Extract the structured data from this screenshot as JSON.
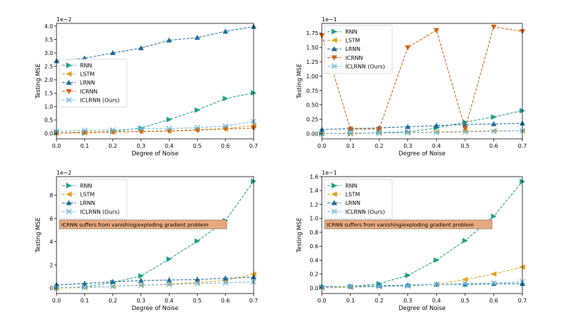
{
  "chart_data": [
    {
      "type": "line",
      "xlabel": "Degree of Noise",
      "ylabel": "Testing MSE",
      "scale_label": "1e−2",
      "x": [
        0.0,
        0.1,
        0.2,
        0.3,
        0.4,
        0.5,
        0.6,
        0.7
      ],
      "xticks": [
        "0.0",
        "0.1",
        "0.2",
        "0.3",
        "0.4",
        "0.5",
        "0.6",
        "0.7"
      ],
      "yticks": [
        0.0,
        0.5,
        1.0,
        1.5,
        2.0,
        2.5,
        3.0,
        3.5,
        4.0
      ],
      "ytick_labels": [
        "0.0",
        "0.5",
        "1.0",
        "1.5",
        "2.0",
        "2.5",
        "3.0",
        "3.5",
        "4.0"
      ],
      "xlim": [
        0.0,
        0.7
      ],
      "ylim": [
        -0.2,
        4.1
      ],
      "legend_position": "center-left",
      "series": [
        {
          "name": "RNN",
          "values": [
            0.02,
            0.02,
            0.08,
            0.2,
            0.52,
            0.87,
            1.3,
            1.51
          ]
        },
        {
          "name": "LSTM",
          "values": [
            0.02,
            0.02,
            0.05,
            0.08,
            0.1,
            0.14,
            0.18,
            0.3
          ]
        },
        {
          "name": "LRNN",
          "values": [
            2.7,
            2.8,
            3.0,
            3.18,
            3.47,
            3.57,
            3.8,
            3.98
          ]
        },
        {
          "name": "ICRNN",
          "values": [
            0.01,
            0.05,
            0.06,
            0.07,
            0.09,
            0.12,
            0.17,
            0.2
          ]
        },
        {
          "name": "ICLRNN (Ours)",
          "values": [
            0.08,
            0.12,
            0.13,
            0.17,
            0.18,
            0.22,
            0.27,
            0.45
          ]
        }
      ]
    },
    {
      "type": "line",
      "xlabel": "Degree of Noise",
      "ylabel": "Testing MSE",
      "scale_label": "1e−1",
      "x": [
        0.0,
        0.1,
        0.2,
        0.3,
        0.4,
        0.5,
        0.6,
        0.7
      ],
      "xticks": [
        "0.0",
        "0.1",
        "0.2",
        "0.3",
        "0.4",
        "0.5",
        "0.6",
        "0.7"
      ],
      "yticks": [
        0.0,
        0.25,
        0.5,
        0.75,
        1.0,
        1.25,
        1.5,
        1.75
      ],
      "ytick_labels": [
        "0.00",
        "0.25",
        "0.50",
        "0.75",
        "1.00",
        "1.25",
        "1.50",
        "1.75"
      ],
      "xlim": [
        0.0,
        0.7
      ],
      "ylim": [
        -0.09,
        1.92
      ],
      "legend_position": "upper-left",
      "series": [
        {
          "name": "RNN",
          "values": [
            0.0,
            0.0,
            0.02,
            0.03,
            0.1,
            0.2,
            0.29,
            0.4
          ]
        },
        {
          "name": "LSTM",
          "values": [
            0.0,
            0.0,
            0.01,
            0.02,
            0.03,
            0.04,
            0.05,
            0.05
          ]
        },
        {
          "name": "LRNN",
          "values": [
            0.07,
            0.09,
            0.1,
            0.12,
            0.14,
            0.16,
            0.17,
            0.18
          ]
        },
        {
          "name": "ICRNN",
          "values": [
            1.71,
            0.08,
            0.08,
            1.5,
            1.8,
            0.09,
            1.86,
            1.78
          ]
        },
        {
          "name": "ICLRNN (Ours)",
          "values": [
            0.0,
            0.01,
            0.01,
            0.02,
            0.02,
            0.03,
            0.04,
            0.05
          ]
        }
      ]
    },
    {
      "type": "line",
      "xlabel": "Degree of Noise",
      "ylabel": "Testing MSE",
      "scale_label": "1e−2",
      "x": [
        0.0,
        0.1,
        0.2,
        0.3,
        0.4,
        0.5,
        0.6,
        0.7
      ],
      "xticks": [
        "0.0",
        "0.1",
        "0.2",
        "0.3",
        "0.4",
        "0.5",
        "0.6",
        "0.7"
      ],
      "yticks": [
        0,
        2,
        4,
        6,
        8
      ],
      "ytick_labels": [
        "0",
        "2",
        "4",
        "6",
        "8"
      ],
      "xlim": [
        0.0,
        0.7
      ],
      "ylim": [
        -0.46,
        9.6
      ],
      "legend_position": "upper-left",
      "annotation": "ICRNN suffers from vanishing/exploding gradient problem",
      "series": [
        {
          "name": "RNN",
          "values": [
            0.0,
            0.1,
            0.5,
            1.05,
            2.5,
            4.05,
            5.8,
            9.2
          ]
        },
        {
          "name": "LSTM",
          "values": [
            0.0,
            0.05,
            0.15,
            0.25,
            0.35,
            0.5,
            0.65,
            1.2
          ]
        },
        {
          "name": "LRNN",
          "values": [
            0.3,
            0.4,
            0.55,
            0.65,
            0.7,
            0.75,
            0.85,
            0.95
          ]
        },
        {
          "name": "ICLRNN (Ours)",
          "values": [
            0.05,
            0.08,
            0.15,
            0.25,
            0.32,
            0.4,
            0.45,
            0.55
          ]
        }
      ]
    },
    {
      "type": "line",
      "xlabel": "Degree of Noise",
      "ylabel": "Testing MSE",
      "scale_label": "1e−1",
      "x": [
        0.0,
        0.1,
        0.2,
        0.3,
        0.4,
        0.5,
        0.6,
        0.7
      ],
      "xticks": [
        "0.0",
        "0.1",
        "0.2",
        "0.3",
        "0.4",
        "0.5",
        "0.6",
        "0.7"
      ],
      "yticks": [
        0.0,
        0.2,
        0.4,
        0.6,
        0.8,
        1.0,
        1.2,
        1.4,
        1.6
      ],
      "ytick_labels": [
        "0.0",
        "0.2",
        "0.4",
        "0.6",
        "0.8",
        "1.0",
        "1.2",
        "1.4",
        "1.6"
      ],
      "xlim": [
        0.0,
        0.7
      ],
      "ylim": [
        -0.08,
        1.6
      ],
      "legend_position": "upper-left",
      "annotation": "ICRNN suffers from vanishing/exploding gradient problem",
      "series": [
        {
          "name": "RNN",
          "values": [
            0.01,
            0.02,
            0.06,
            0.18,
            0.4,
            0.68,
            1.03,
            1.53
          ]
        },
        {
          "name": "LSTM",
          "values": [
            0.0,
            0.01,
            0.02,
            0.03,
            0.05,
            0.12,
            0.2,
            0.3
          ]
        },
        {
          "name": "LRNN",
          "values": [
            0.02,
            0.02,
            0.03,
            0.04,
            0.05,
            0.05,
            0.06,
            0.06
          ]
        },
        {
          "name": "ICLRNN (Ours)",
          "values": [
            0.01,
            0.02,
            0.02,
            0.03,
            0.05,
            0.06,
            0.07,
            0.09
          ]
        }
      ]
    }
  ],
  "styles": {
    "RNN": {
      "color": "#1f9e89",
      "marker": "tri-right"
    },
    "LSTM": {
      "color": "#e8a21e",
      "marker": "tri-left"
    },
    "LRNN": {
      "color": "#1f6e9c",
      "marker": "tri-up"
    },
    "ICRNN": {
      "color": "#d65f0e",
      "marker": "tri-down"
    },
    "ICLRNN (Ours)": {
      "color": "#6fb8e0",
      "marker": "x"
    }
  },
  "annotation_box_color": "#e6a980"
}
